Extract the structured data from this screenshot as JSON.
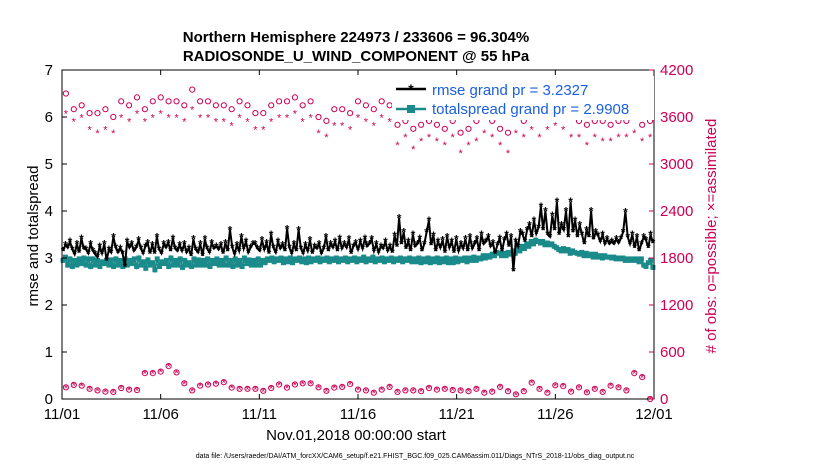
{
  "chart_data": {
    "type": "line",
    "title_line1": "Northern Hemisphere 224973 / 233606 = 96.304%",
    "title_line2": "RADIOSONDE_U_WIND_COMPONENT @ 55 hPa",
    "xlabel": "Nov.01,2018 00:00:00 start",
    "ylabel_left": "rmse and totalspread",
    "ylabel_right": "# of obs: o=possible; ×=assimilated",
    "footnote": "data file: /Users/raeder/DAI/ATM_forcXX/CAM6_setup/f.e21.FHIST_BGC.f09_025.CAM6assim.011/Diags_NTrS_2018-11/obs_diag_output.nc",
    "xlim": [
      0,
      30
    ],
    "ylim_left": [
      0,
      7
    ],
    "ylim_right": [
      0,
      4200
    ],
    "x_ticks": [
      0,
      5,
      10,
      15,
      20,
      25,
      30
    ],
    "x_tick_labels": [
      "11/01",
      "11/06",
      "11/11",
      "11/16",
      "11/21",
      "11/26",
      "12/01"
    ],
    "y_left_ticks": [
      "0",
      "1",
      "2",
      "3",
      "4",
      "5",
      "6",
      "7"
    ],
    "y_right_ticks": [
      "0",
      "600",
      "1200",
      "1800",
      "2400",
      "3000",
      "3600",
      "4200"
    ],
    "legend": [
      {
        "label": "rmse grand pr = 3.2327",
        "color": "#000000"
      },
      {
        "label": "totalspread grand pr = 2.9908",
        "color": "#1a8a8a"
      }
    ],
    "colors": {
      "rmse": "#000000",
      "spread": "#1a8a8a",
      "obs": "#cc0055",
      "axis_right": "#cc0055"
    },
    "series": [
      {
        "name": "rmse",
        "values": [
          3.15,
          3.28,
          3.22,
          3.35,
          3.18,
          3.08,
          3.3,
          3.12,
          3.42,
          3.2,
          3.18,
          3.1,
          3.3,
          3.15,
          3.08,
          3.02,
          3.25,
          3.1,
          3.3,
          2.95,
          3.18,
          3.12,
          3.45,
          3.22,
          3.12,
          3.2,
          3.1,
          2.82,
          3.35,
          3.22,
          3.3,
          3.15,
          3.22,
          3.38,
          3.2,
          3.1,
          3.25,
          3.32,
          3.1,
          3.28,
          3.1,
          3.45,
          3.18,
          3.1,
          3.3,
          3.22,
          3.32,
          3.15,
          3.42,
          3.2,
          3.15,
          3.28,
          3.15,
          3.3,
          3.12,
          3.2,
          3.05,
          3.4,
          3.18,
          3.12,
          3.3,
          3.05,
          3.4,
          3.2,
          3.12,
          3.32,
          3.2,
          3.25,
          3.18,
          3.28,
          3.1,
          3.32,
          3.15,
          3.6,
          3.22,
          3.08,
          3.28,
          3.15,
          3.45,
          3.2,
          3.35,
          3.12,
          3.22,
          3.3,
          3.3,
          3.2,
          3.15,
          3.38,
          3.18,
          3.32,
          3.1,
          3.5,
          3.22,
          3.12,
          3.35,
          3.2,
          3.28,
          3.15,
          3.62,
          3.22,
          3.1,
          3.3,
          3.15,
          3.6,
          3.2,
          3.1,
          3.28,
          3.15,
          3.38,
          3.1,
          3.25,
          3.2,
          3.3,
          3.1,
          3.2,
          3.45,
          3.15,
          3.3,
          3.22,
          3.35,
          3.15,
          3.42,
          3.2,
          3.3,
          3.22,
          3.4,
          3.1,
          3.25,
          3.32,
          3.18,
          3.35,
          3.2,
          3.42,
          3.25,
          3.3,
          3.4,
          3.15,
          3.3,
          3.12,
          3.25,
          3.2,
          3.35,
          3.15,
          3.25,
          3.12,
          3.48,
          3.25,
          3.85,
          3.3,
          3.55,
          3.2,
          3.35,
          3.15,
          3.5,
          3.25,
          3.3,
          3.42,
          3.15,
          3.3,
          3.55,
          3.8,
          3.28,
          3.48,
          3.15,
          3.35,
          3.22,
          3.38,
          3.12,
          3.45,
          3.22,
          3.35,
          3.12,
          3.4,
          3.15,
          3.3,
          3.2,
          3.4,
          3.15,
          3.45,
          3.2,
          3.3,
          3.4,
          3.15,
          3.5,
          3.3,
          3.35,
          3.45,
          3.25,
          3.32,
          3.1,
          3.28,
          3.42,
          3.15,
          3.38,
          3.5,
          3.25,
          3.45,
          2.72,
          3.35,
          3.25,
          3.55,
          3.5,
          3.35,
          3.6,
          3.7,
          3.45,
          3.8,
          3.52,
          3.65,
          4.1,
          3.6,
          4.0,
          3.5,
          3.45,
          3.9,
          3.6,
          4.2,
          3.5,
          3.7,
          3.6,
          4.0,
          3.45,
          4.2,
          3.55,
          3.8,
          3.45,
          3.7,
          3.5,
          3.3,
          3.6,
          3.45,
          4.0,
          3.4,
          3.55,
          3.48,
          3.35,
          3.5,
          3.3,
          3.4,
          3.3,
          3.35,
          3.3,
          3.4,
          3.32,
          3.42,
          3.55,
          3.98,
          3.45,
          3.3,
          3.5,
          3.22,
          3.45,
          3.15,
          3.3,
          3.45,
          3.38,
          3.22,
          3.5,
          3.32
        ]
      },
      {
        "name": "totalspread",
        "values": [
          2.95,
          3.02,
          2.85,
          2.98,
          2.82,
          2.95,
          2.85,
          2.98,
          2.88,
          3.0,
          2.85,
          2.98,
          2.82,
          2.98,
          2.85,
          2.95,
          2.82,
          2.92,
          2.88,
          2.95,
          2.85,
          2.96,
          2.82,
          2.98,
          2.85,
          2.95,
          2.82,
          2.98,
          2.85,
          2.95,
          2.88,
          2.98,
          2.82,
          3.0,
          2.85,
          2.92,
          2.78,
          2.96,
          2.85,
          2.9,
          2.75,
          2.98,
          2.82,
          2.92,
          2.88,
          2.95,
          2.82,
          3.0,
          2.85,
          2.95,
          2.85,
          2.98,
          2.8,
          2.95,
          2.85,
          2.9,
          2.82,
          2.98,
          2.85,
          2.96,
          2.85,
          2.95,
          2.85,
          2.98,
          2.82,
          2.95,
          2.88,
          2.98,
          2.85,
          2.95,
          2.85,
          3.0,
          2.85,
          2.95,
          2.82,
          2.98,
          2.85,
          2.95,
          2.82,
          3.0,
          2.88,
          2.96,
          2.85,
          2.95,
          2.85,
          2.98,
          2.85,
          2.95,
          2.9,
          2.98,
          2.95,
          3.0,
          2.92,
          2.98,
          2.95,
          3.0,
          2.9,
          2.98,
          2.92,
          3.0,
          2.9,
          2.98,
          2.95,
          3.0,
          2.92,
          2.98,
          2.9,
          3.0,
          2.92,
          2.98,
          2.95,
          3.0,
          2.92,
          2.98,
          2.95,
          3.0,
          2.92,
          2.98,
          2.95,
          3.0,
          2.92,
          2.98,
          2.95,
          3.0,
          2.92,
          2.98,
          2.95,
          3.0,
          2.92,
          2.98,
          2.95,
          3.02,
          2.92,
          2.98,
          2.95,
          3.02,
          2.92,
          2.98,
          2.95,
          3.0,
          2.92,
          2.98,
          2.95,
          3.0,
          2.92,
          2.98,
          2.95,
          3.0,
          2.92,
          2.98,
          2.95,
          3.0,
          2.92,
          2.98,
          2.92,
          3.0,
          2.9,
          2.98,
          2.92,
          3.0,
          2.9,
          2.98,
          2.92,
          3.0,
          2.9,
          2.98,
          2.92,
          3.0,
          2.9,
          2.98,
          2.9,
          3.0,
          2.92,
          2.98,
          2.95,
          3.0,
          2.92,
          3.0,
          2.95,
          3.02,
          2.95,
          3.0,
          2.98,
          3.05,
          3.0,
          3.05,
          3.02,
          3.08,
          3.05,
          3.12,
          3.1,
          3.05,
          3.1,
          3.05,
          3.12,
          3.08,
          3.15,
          3.1,
          3.2,
          3.15,
          3.25,
          3.2,
          3.3,
          3.25,
          3.35,
          3.3,
          3.38,
          3.35,
          3.32,
          3.35,
          3.28,
          3.32,
          3.28,
          3.3,
          3.25,
          3.22,
          3.18,
          3.15,
          3.2,
          3.15,
          3.18,
          3.1,
          3.15,
          3.12,
          3.1,
          3.08,
          3.12,
          3.05,
          3.1,
          3.05,
          3.08,
          3.02,
          3.08,
          3.02,
          3.05,
          3.0,
          3.05,
          3.02,
          3.02,
          3.0,
          3.02,
          2.98,
          3.0,
          2.98,
          3.0,
          2.95,
          2.98,
          2.95,
          2.98,
          2.95,
          2.98,
          2.92,
          2.98,
          2.85,
          2.82,
          2.9,
          2.95,
          2.8
        ]
      },
      {
        "name": "obs_possible",
        "values": [
          3900,
          3700,
          3750,
          3650,
          3650,
          3700,
          3600,
          3800,
          3750,
          3850,
          3700,
          3800,
          3850,
          3800,
          3800,
          3750,
          3950,
          3800,
          3800,
          3750,
          3750,
          3700,
          3800,
          3750,
          3650,
          3650,
          3750,
          3800,
          3800,
          3850,
          3750,
          3800,
          3600,
          3550,
          3700,
          3700,
          3650,
          3800,
          3750,
          3700,
          3800,
          3750,
          3500,
          3550,
          3450,
          3500,
          3550,
          3500,
          3450,
          3550,
          3400,
          3450,
          3550,
          3650,
          3550,
          3450,
          3400,
          3600,
          3550,
          3700,
          3600,
          3700,
          3750,
          3700,
          3600,
          3550,
          3500,
          3550,
          3550,
          3500,
          3550,
          3550,
          3600,
          3500,
          3550
        ]
      },
      {
        "name": "obs_assimilated",
        "values": [
          3650,
          3550,
          3600,
          3450,
          3400,
          3450,
          3400,
          3600,
          3550,
          3650,
          3550,
          3600,
          3650,
          3600,
          3600,
          3550,
          3700,
          3600,
          3600,
          3550,
          3550,
          3500,
          3600,
          3550,
          3450,
          3450,
          3550,
          3600,
          3600,
          3650,
          3550,
          3600,
          3400,
          3350,
          3500,
          3500,
          3450,
          3600,
          3550,
          3500,
          3600,
          3550,
          3250,
          3350,
          3200,
          3300,
          3350,
          3300,
          3250,
          3350,
          3150,
          3250,
          3300,
          3400,
          3350,
          3250,
          3150,
          3400,
          3350,
          3450,
          3350,
          3450,
          3500,
          3450,
          3350,
          3350,
          3250,
          3350,
          3300,
          3300,
          3350,
          3350,
          3400,
          3300,
          3350
        ]
      },
      {
        "name": "obs_low_possible",
        "values": [
          150,
          180,
          170,
          130,
          110,
          95,
          90,
          140,
          120,
          115,
          330,
          330,
          350,
          420,
          340,
          200,
          110,
          170,
          185,
          195,
          215,
          145,
          130,
          130,
          130,
          105,
          140,
          185,
          145,
          185,
          200,
          200,
          150,
          105,
          145,
          155,
          190,
          120,
          110,
          80,
          120,
          155,
          90,
          110,
          110,
          100,
          140,
          120,
          130,
          115,
          110,
          100,
          130,
          80,
          95,
          155,
          100,
          60,
          100,
          210,
          130,
          80,
          175,
          165,
          95,
          150,
          85,
          130,
          90,
          170,
          150,
          110,
          330,
          280,
          0
        ]
      },
      {
        "name": "obs_low_assimilated",
        "values": [
          150,
          180,
          170,
          130,
          110,
          95,
          90,
          140,
          120,
          115,
          330,
          330,
          350,
          420,
          340,
          200,
          110,
          170,
          185,
          195,
          215,
          145,
          130,
          130,
          130,
          105,
          140,
          185,
          145,
          185,
          200,
          200,
          150,
          105,
          145,
          155,
          190,
          120,
          110,
          80,
          120,
          155,
          90,
          110,
          110,
          100,
          140,
          120,
          130,
          115,
          110,
          100,
          130,
          80,
          95,
          155,
          100,
          60,
          100,
          210,
          130,
          80,
          175,
          165,
          95,
          150,
          85,
          130,
          90,
          170,
          150,
          110,
          330,
          280,
          0
        ]
      }
    ]
  }
}
